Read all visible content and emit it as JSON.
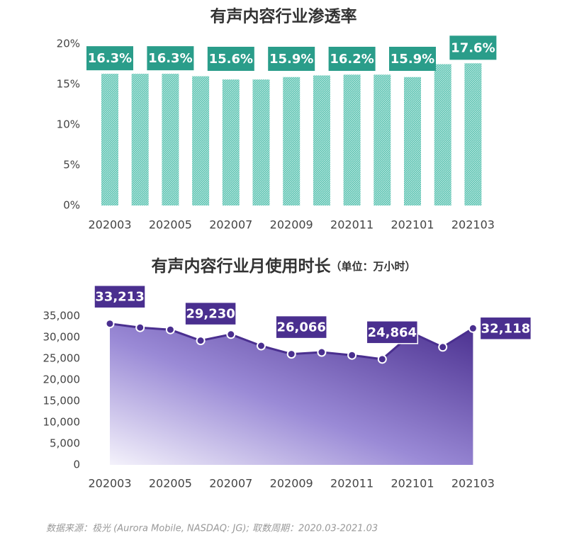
{
  "chart_data": [
    {
      "type": "bar",
      "title": "有声内容行业渗透率",
      "categories": [
        "202003",
        null,
        "202005",
        null,
        "202007",
        null,
        "202009",
        null,
        "202011",
        null,
        "202101",
        null,
        "202103"
      ],
      "values": [
        16.3,
        16.3,
        16.3,
        16.0,
        15.6,
        15.6,
        15.9,
        16.1,
        16.2,
        16.2,
        15.9,
        17.5,
        17.6
      ],
      "value_labels": [
        "16.3%",
        null,
        "16.3%",
        null,
        "15.6%",
        null,
        "15.9%",
        null,
        "16.2%",
        null,
        "15.9%",
        null,
        "17.6%"
      ],
      "color": "#5cc4b2",
      "label_color": "#2a9d8a",
      "ylim": [
        0,
        20
      ],
      "yticks": [
        {
          "value": 0,
          "label": "0%"
        },
        {
          "value": 5,
          "label": "5%"
        },
        {
          "value": 10,
          "label": "10%"
        },
        {
          "value": 15,
          "label": "15%"
        },
        {
          "value": 20,
          "label": "20%"
        }
      ]
    },
    {
      "type": "area",
      "title": "有声内容行业月使用时长",
      "unit": "（单位：万小时）",
      "categories": [
        "202003",
        null,
        "202005",
        null,
        "202007",
        null,
        "202009",
        null,
        "202011",
        null,
        "202101",
        null,
        "202103"
      ],
      "values": [
        33213,
        32300,
        31800,
        29230,
        30700,
        28000,
        26066,
        26500,
        25800,
        24864,
        31000,
        27700,
        32118
      ],
      "value_labels": [
        "33,213",
        null,
        null,
        "29,230",
        null,
        null,
        "26,066",
        null,
        null,
        "24,864",
        null,
        null,
        "32,118"
      ],
      "color": "#4a2f8f",
      "ylim": [
        0,
        35000
      ],
      "yticks": [
        0,
        {
          "value": 5000,
          "label": "5,000"
        },
        {
          "value": 10000,
          "label": "10,000"
        },
        {
          "value": 15000,
          "label": "15,000"
        },
        {
          "value": 20000,
          "label": "20,000"
        },
        {
          "value": 25000,
          "label": "25,000"
        },
        {
          "value": 30000,
          "label": "30,000"
        },
        {
          "value": 35000,
          "label": "35,000"
        }
      ]
    }
  ],
  "footnote": "数据来源：极光 (Aurora Mobile, NASDAQ: JG); 取数周期：2020.03-2021.03"
}
